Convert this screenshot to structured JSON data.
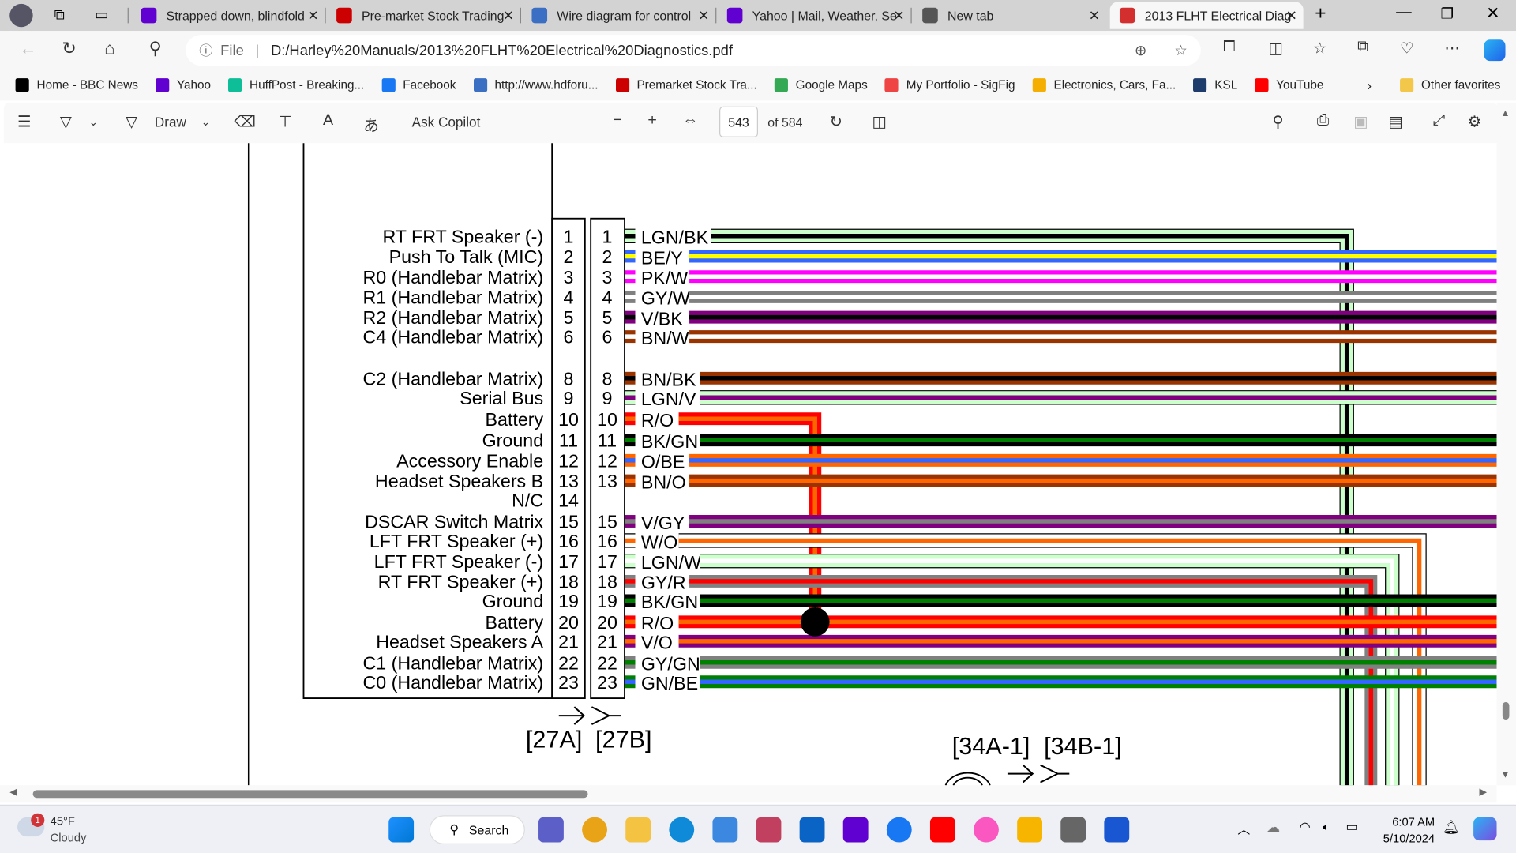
{
  "browser": {
    "tabs": [
      {
        "title": "Strapped down, blindfold",
        "icon": "yahoo-icon",
        "color": "#6001d2",
        "active": false
      },
      {
        "title": "Pre-market Stock Trading",
        "icon": "cnn-icon",
        "color": "#cc0000",
        "active": false
      },
      {
        "title": "Wire diagram for control",
        "icon": "hdforums-icon",
        "color": "#3a6fc4",
        "active": false
      },
      {
        "title": "Yahoo | Mail, Weather, Se",
        "icon": "yahoo-icon",
        "color": "#6001d2",
        "active": false
      },
      {
        "title": "New tab",
        "icon": "new-tab-icon",
        "color": "#555555",
        "active": false
      },
      {
        "title": "2013 FLHT Electrical Diag",
        "icon": "pdf-icon",
        "color": "#d32f2f",
        "active": true
      }
    ],
    "url_prefix": "File",
    "url": "D:/Harley%20Manuals/2013%20FLHT%20Electrical%20Diagnostics.pdf",
    "bookmarks": [
      {
        "label": "Home - BBC News",
        "color": "#000000"
      },
      {
        "label": "Yahoo",
        "color": "#6001d2"
      },
      {
        "label": "HuffPost - Breaking...",
        "color": "#0dbe98"
      },
      {
        "label": "Facebook",
        "color": "#1877f2"
      },
      {
        "label": "http://www.hdforu...",
        "color": "#3a6fc4"
      },
      {
        "label": "Premarket Stock Tra...",
        "color": "#cc0000"
      },
      {
        "label": "Google Maps",
        "color": "#34a853"
      },
      {
        "label": "My Portfolio - SigFig",
        "color": "#e44"
      },
      {
        "label": "Electronics, Cars, Fa...",
        "color": "#f5af02"
      },
      {
        "label": "KSL",
        "color": "#1d3b6b"
      },
      {
        "label": "YouTube",
        "color": "#ff0000"
      }
    ],
    "other_favorites": "Other favorites"
  },
  "pdf_toolbar": {
    "draw": "Draw",
    "ask_copilot": "Ask Copilot",
    "page": "543",
    "page_total": "of 584"
  },
  "diagram": {
    "connector_a": "[27A]",
    "connector_b": "[27B]",
    "connector_c": "[34A-1]",
    "connector_d": "[34B-1]",
    "wire_colors": {
      "LGN": "#ccffcc",
      "BK": "#000000",
      "BE": "#3366ff",
      "Y": "#ffff00",
      "PK": "#ff00ff",
      "W": "#ffffff",
      "GY": "#808080",
      "V": "#800080",
      "BN": "#993300",
      "R": "#ff0000",
      "O": "#ff6600",
      "GN": "#008000"
    },
    "pins": [
      {
        "pin": "1",
        "function": "RT FRT Speaker (-)",
        "wire": "LGN/BK"
      },
      {
        "pin": "2",
        "function": "Push To Talk (MIC)",
        "wire": "BE/Y"
      },
      {
        "pin": "3",
        "function": "R0 (Handlebar Matrix)",
        "wire": "PK/W"
      },
      {
        "pin": "4",
        "function": "R1 (Handlebar Matrix)",
        "wire": "GY/W"
      },
      {
        "pin": "5",
        "function": "R2 (Handlebar Matrix)",
        "wire": "V/BK"
      },
      {
        "pin": "6",
        "function": "C4 (Handlebar Matrix)",
        "wire": "BN/W"
      },
      {
        "pin": "8",
        "function": "C2 (Handlebar Matrix)",
        "wire": "BN/BK"
      },
      {
        "pin": "9",
        "function": "Serial Bus",
        "wire": "LGN/V"
      },
      {
        "pin": "10",
        "function": "Battery",
        "wire": "R/O"
      },
      {
        "pin": "11",
        "function": "Ground",
        "wire": "BK/GN"
      },
      {
        "pin": "12",
        "function": "Accessory Enable",
        "wire": "O/BE"
      },
      {
        "pin": "13",
        "function": "Headset Speakers B",
        "wire": "BN/O"
      },
      {
        "pin": "14",
        "function": "N/C",
        "wire": ""
      },
      {
        "pin": "15",
        "function": "DSCAR Switch Matrix",
        "wire": "V/GY"
      },
      {
        "pin": "16",
        "function": "LFT FRT Speaker (+)",
        "wire": "W/O"
      },
      {
        "pin": "17",
        "function": "LFT FRT Speaker (-)",
        "wire": "LGN/W"
      },
      {
        "pin": "18",
        "function": "RT FRT Speaker (+)",
        "wire": "GY/R"
      },
      {
        "pin": "19",
        "function": "Ground",
        "wire": "BK/GN"
      },
      {
        "pin": "20",
        "function": "Battery",
        "wire": "R/O"
      },
      {
        "pin": "21",
        "function": "Headset Speakers A",
        "wire": "V/O"
      },
      {
        "pin": "22",
        "function": "C1 (Handlebar Matrix)",
        "wire": "GY/GN"
      },
      {
        "pin": "23",
        "function": "C0 (Handlebar Matrix)",
        "wire": "GN/BE"
      }
    ]
  },
  "taskbar": {
    "temperature": "45°F",
    "weather": "Cloudy",
    "weather_badge": "1",
    "search": "Search",
    "time": "6:07 AM",
    "date": "5/10/2024"
  }
}
